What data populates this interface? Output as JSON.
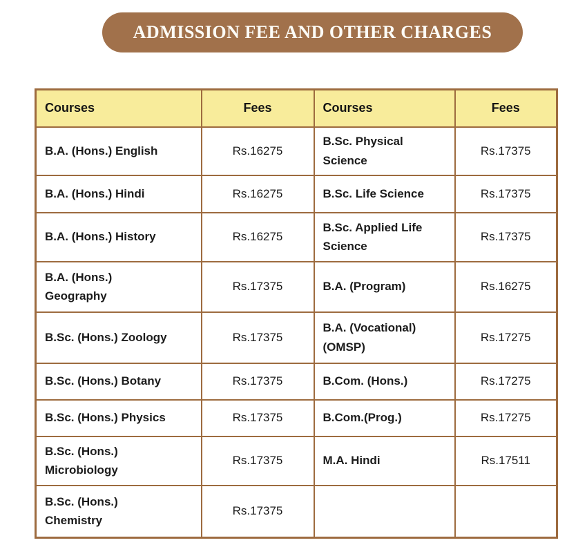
{
  "banner": {
    "title": "ADMISSION FEE AND OTHER CHARGES"
  },
  "colors": {
    "banner_brown": "#A1714B",
    "border_brown": "#9D6B3F",
    "header_yellow": "#F8EC9B",
    "text_dark": "#1c1c1c",
    "banner_text": "#FDFCF7"
  },
  "table": {
    "headers": [
      "Courses",
      "Fees",
      "Courses",
      "Fees"
    ],
    "rows": [
      {
        "course_left": "B.A. (Hons.) English",
        "fee_left": "Rs.16275",
        "course_right": "B.Sc. Physical\nScience",
        "fee_right": "Rs.17375"
      },
      {
        "course_left": "B.A. (Hons.) Hindi",
        "fee_left": "Rs.16275",
        "course_right": "B.Sc. Life Science",
        "fee_right": "Rs.17375"
      },
      {
        "course_left": "B.A. (Hons.) History",
        "fee_left": "Rs.16275",
        "course_right": "B.Sc. Applied Life\nScience",
        "fee_right": "Rs.17375"
      },
      {
        "course_left": "B.A. (Hons.)\nGeography",
        "fee_left": "Rs.17375",
        "course_right": "B.A. (Program)",
        "fee_right": "Rs.16275"
      },
      {
        "course_left": "B.Sc. (Hons.) Zoology",
        "fee_left": "Rs.17375",
        "course_right": "B.A. (Vocational)\n(OMSP)",
        "fee_right": "Rs.17275"
      },
      {
        "course_left": "B.Sc. (Hons.) Botany",
        "fee_left": "Rs.17375",
        "course_right": "B.Com. (Hons.)",
        "fee_right": "Rs.17275"
      },
      {
        "course_left": "B.Sc. (Hons.) Physics",
        "fee_left": "Rs.17375",
        "course_right": "B.Com.(Prog.)",
        "fee_right": "Rs.17275"
      },
      {
        "course_left": "B.Sc. (Hons.)\nMicrobiology",
        "fee_left": "Rs.17375",
        "course_right": "M.A. Hindi",
        "fee_right": "Rs.17511"
      },
      {
        "course_left": "B.Sc. (Hons.)\nChemistry",
        "fee_left": "Rs.17375",
        "course_right": "",
        "fee_right": ""
      }
    ]
  }
}
